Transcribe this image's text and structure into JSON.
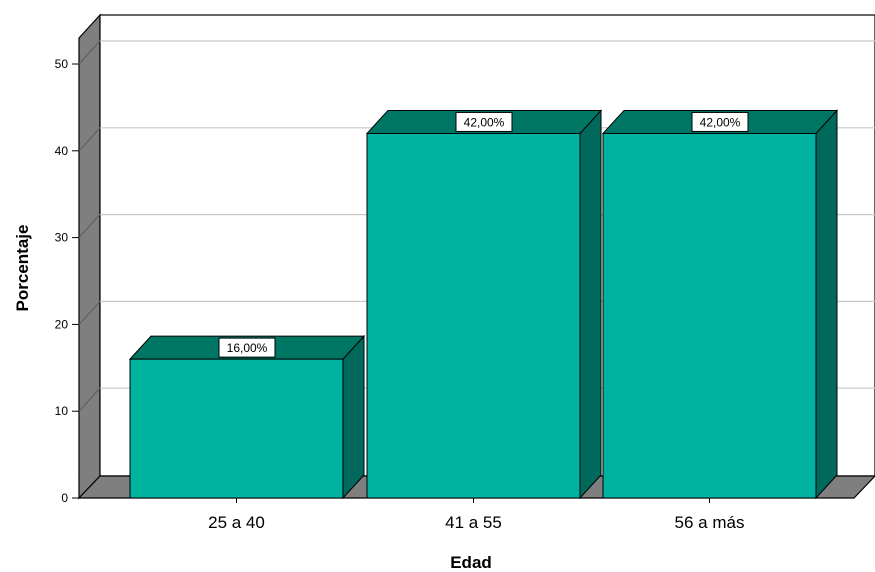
{
  "chart_data": {
    "type": "bar",
    "categories": [
      "25 a 40",
      "41 a 55",
      "56 a más"
    ],
    "values": [
      16.0,
      42.0,
      42.0
    ],
    "data_labels": [
      "16,00%",
      "42,00%",
      "42,00%"
    ],
    "xlabel": "Edad",
    "ylabel": "Porcentaje",
    "ylim": [
      0,
      50
    ],
    "yticks": [
      0,
      10,
      20,
      30,
      40,
      50
    ],
    "grid": true,
    "style": "3d",
    "colors": {
      "bar_front": "#00B2A0",
      "bar_top": "#007665",
      "bar_side": "#00695B",
      "wall": "#FFFFFF",
      "floor": "#808080",
      "gridline": "#C8C8C8"
    }
  }
}
